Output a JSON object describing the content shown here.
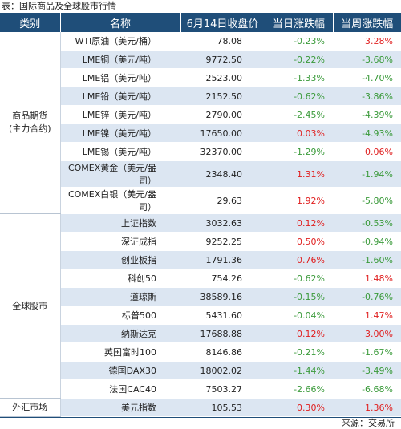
{
  "caption": "表：国际商品及全球股市行情",
  "headers": [
    "类别",
    "名称",
    "6月14日收盘价",
    "当日涨跌幅",
    "当周涨跌幅"
  ],
  "groups": [
    {
      "category": "商品期货\n(主力合约)",
      "rows": [
        {
          "name": "WTI原油（美元/桶）",
          "close": "78.08",
          "day": "-0.23%",
          "week": "3.28%"
        },
        {
          "name": "LME铜（美元/吨）",
          "close": "9772.50",
          "day": "-0.22%",
          "week": "-3.68%"
        },
        {
          "name": "LME铝（美元/吨）",
          "close": "2523.00",
          "day": "-1.33%",
          "week": "-4.70%"
        },
        {
          "name": "LME铅（美元/吨）",
          "close": "2152.50",
          "day": "-0.62%",
          "week": "-3.86%"
        },
        {
          "name": "LME锌（美元/吨）",
          "close": "2790.00",
          "day": "-2.45%",
          "week": "-4.39%"
        },
        {
          "name": "LME镍（美元/吨）",
          "close": "17650.00",
          "day": "0.03%",
          "week": "-4.93%"
        },
        {
          "name": "LME锡（美元/吨）",
          "close": "32370.00",
          "day": "-1.29%",
          "week": "0.06%"
        },
        {
          "name": "COMEX黄金（美元/盎司）",
          "close": "2348.40",
          "day": "1.31%",
          "week": "-1.94%"
        },
        {
          "name": "COMEX白银（美元/盎司）",
          "close": "29.63",
          "day": "1.92%",
          "week": "-5.80%"
        }
      ]
    },
    {
      "category": "全球股市",
      "rows": [
        {
          "name": "上证指数",
          "close": "3032.63",
          "day": "0.12%",
          "week": "-0.53%"
        },
        {
          "name": "深证成指",
          "close": "9252.25",
          "day": "0.50%",
          "week": "-0.94%"
        },
        {
          "name": "创业板指",
          "close": "1791.36",
          "day": "0.76%",
          "week": "-1.60%"
        },
        {
          "name": "科创50",
          "close": "754.26",
          "day": "-0.62%",
          "week": "1.48%"
        },
        {
          "name": "道琼斯",
          "close": "38589.16",
          "day": "-0.15%",
          "week": "-0.76%"
        },
        {
          "name": "标普500",
          "close": "5431.60",
          "day": "-0.04%",
          "week": "1.47%"
        },
        {
          "name": "纳斯达克",
          "close": "17688.88",
          "day": "0.12%",
          "week": "3.00%"
        },
        {
          "name": "英国富时100",
          "close": "8146.86",
          "day": "-0.21%",
          "week": "-1.67%"
        },
        {
          "name": "德国DAX30",
          "close": "18002.02",
          "day": "-1.44%",
          "week": "-3.49%"
        },
        {
          "name": "法国CAC40",
          "close": "7503.27",
          "day": "-2.66%",
          "week": "-6.68%"
        }
      ]
    },
    {
      "category": "外汇市场",
      "rows": [
        {
          "name": "美元指数",
          "close": "105.53",
          "day": "0.30%",
          "week": "1.36%"
        }
      ]
    }
  ],
  "colors": {
    "up": "#e02020",
    "down": "#3a9a3a",
    "header_bg": "#1f4e79",
    "alt_row": "#dce6f2"
  },
  "footer": "来源：交易所"
}
